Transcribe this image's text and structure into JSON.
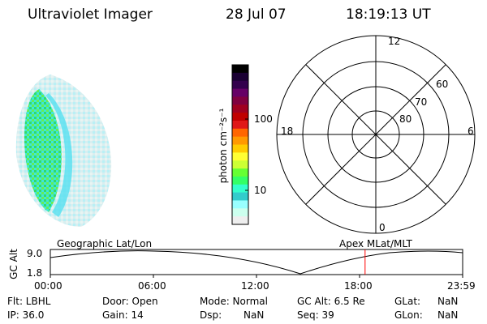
{
  "header": {
    "instrument": "Ultraviolet Imager",
    "date": "28 Jul 07",
    "time": "18:19:13 UT"
  },
  "colorbar": {
    "unit_label": "photon cm⁻²s⁻¹",
    "ticks": [
      "100",
      "10"
    ],
    "colors": [
      "#000000",
      "#1a0033",
      "#33004d",
      "#660066",
      "#800040",
      "#a00020",
      "#c00000",
      "#e01818",
      "#ff6600",
      "#ff9900",
      "#ffcc00",
      "#ffff33",
      "#ccff33",
      "#66ff33",
      "#33ff66",
      "#33ffcc",
      "#33cccc",
      "#99ffff",
      "#ccffee",
      "#eeeeee"
    ]
  },
  "polar": {
    "mlt_labels": {
      "top": "12",
      "left": "18",
      "right": "6",
      "bottom": "0"
    },
    "lat_labels": [
      "60",
      "70",
      "80"
    ]
  },
  "timeline": {
    "ylabel": "GC Alt",
    "yticks": [
      "9.0",
      "1.8"
    ],
    "left_label": "Geographic Lat/Lon",
    "right_label": "Apex  MLat/MLT",
    "xticks": [
      "00:00",
      "06:00",
      "12:00",
      "18:00",
      "23:59"
    ],
    "marker_fraction": 0.7633,
    "marker_color": "#ff0000"
  },
  "info": {
    "flt": "Flt: LBHL",
    "ip": "IP: 36.0",
    "door": "Door: Open",
    "gain": "Gain: 14",
    "mode": "Mode: Normal",
    "dsp_label": "Dsp:",
    "dsp_value": "NaN",
    "gcalt": "GC Alt: 6.5 Re",
    "seq": "Seq: 39",
    "glat_label": "GLat:",
    "glat_value": "NaN",
    "glon_label": "GLon:",
    "glon_value": "NaN"
  }
}
